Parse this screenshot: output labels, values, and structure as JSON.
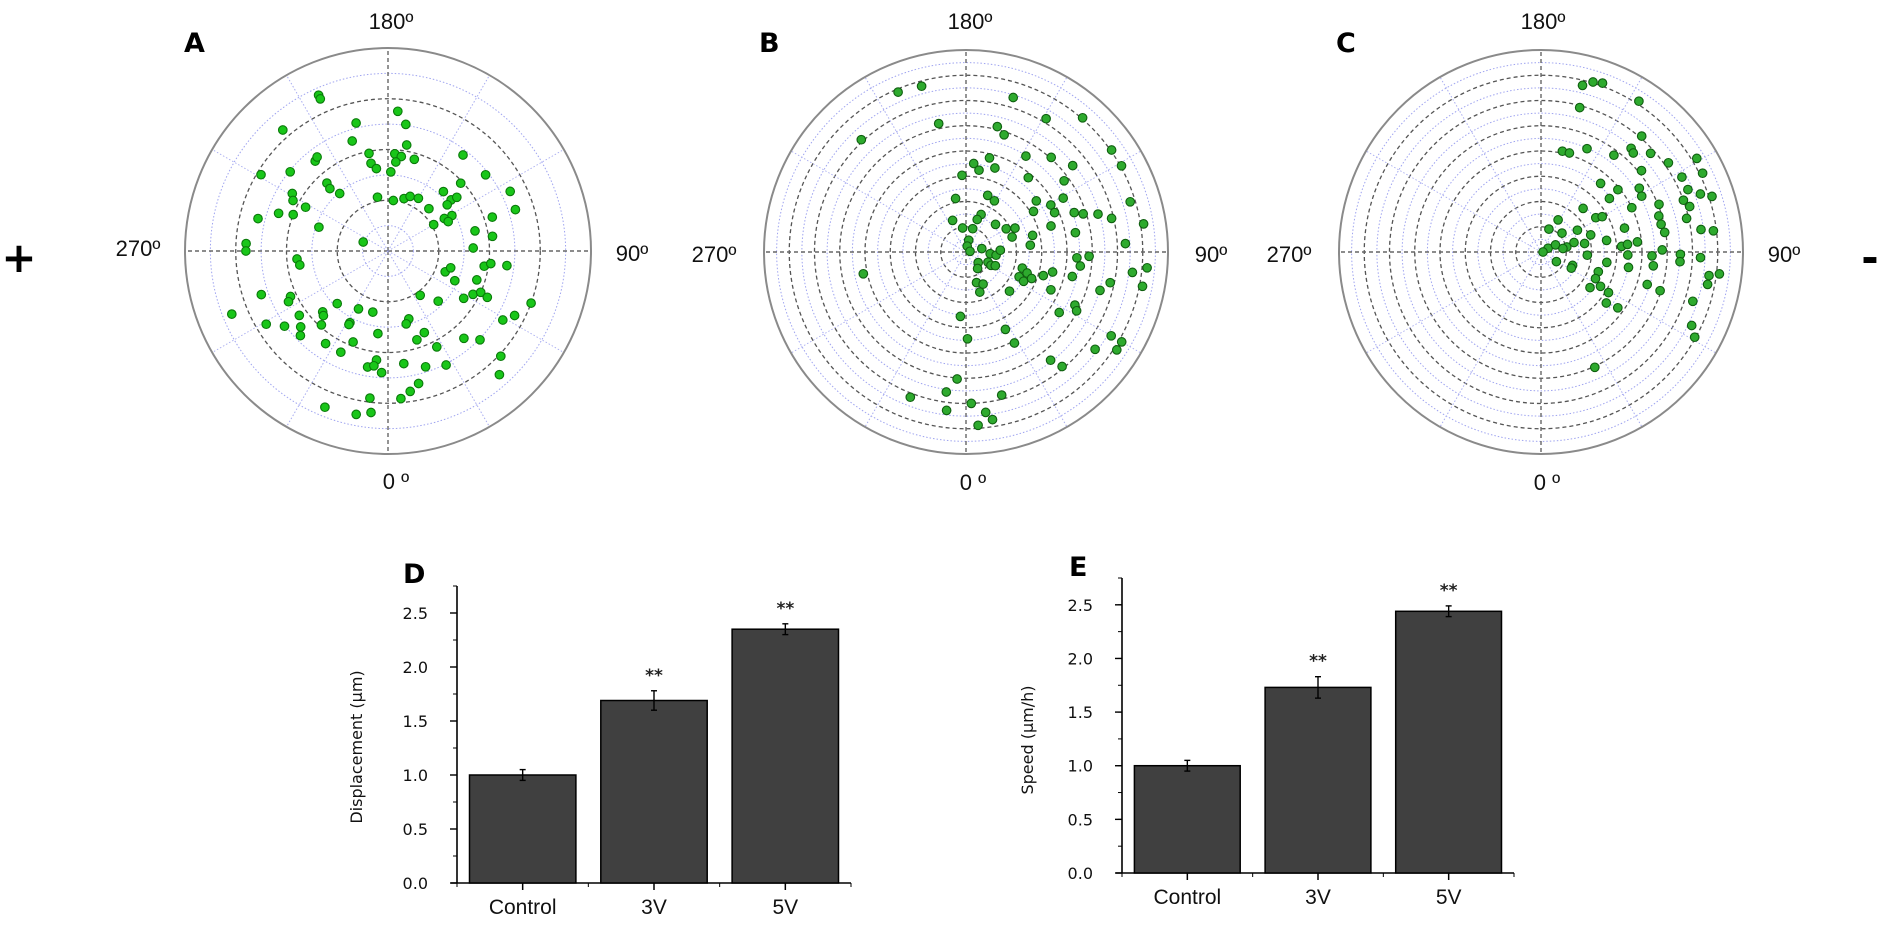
{
  "figure": {
    "sides": {
      "left": "+",
      "right": "-"
    }
  },
  "chart_data": [
    {
      "panel": "A",
      "type": "scatter",
      "coordinate_system": "polar",
      "angle_labels": {
        "top": "180º",
        "right": "90º",
        "bottom": "0 º",
        "left": "270º"
      },
      "angle_convention": "0° at bottom, 90° at right, 180° at top, 270° at left",
      "radial_range": [
        0,
        1
      ],
      "r_gridlines": 8,
      "angular_gridlines_deg": 30,
      "marker_color": "#19c619",
      "marker_edge": "#0a7a0a",
      "points_angle_radius": [
        [
          204,
          0.84
        ],
        [
          204,
          0.82
        ],
        [
          176,
          0.69
        ],
        [
          172,
          0.63
        ],
        [
          194,
          0.65
        ],
        [
          221,
          0.79
        ],
        [
          198,
          0.57
        ],
        [
          170,
          0.53
        ],
        [
          191,
          0.49
        ],
        [
          176,
          0.48
        ],
        [
          172,
          0.47
        ],
        [
          164,
          0.47
        ],
        [
          175,
          0.44
        ],
        [
          191,
          0.44
        ],
        [
          188,
          0.41
        ],
        [
          178,
          0.39
        ],
        [
          219,
          0.57
        ],
        [
          217,
          0.58
        ],
        [
          231,
          0.62
        ],
        [
          239,
          0.73
        ],
        [
          142,
          0.6
        ],
        [
          128,
          0.61
        ],
        [
          133,
          0.49
        ],
        [
          116,
          0.67
        ],
        [
          108,
          0.66
        ],
        [
          222,
          0.45
        ],
        [
          223,
          0.42
        ],
        [
          220,
          0.37
        ],
        [
          239,
          0.55
        ],
        [
          242,
          0.53
        ],
        [
          242,
          0.46
        ],
        [
          251,
          0.57
        ],
        [
          249,
          0.5
        ],
        [
          256,
          0.66
        ],
        [
          251,
          0.36
        ],
        [
          191,
          0.27
        ],
        [
          174,
          0.25
        ],
        [
          163,
          0.27
        ],
        [
          158,
          0.29
        ],
        [
          150,
          0.3
        ],
        [
          136,
          0.29
        ],
        [
          137,
          0.4
        ],
        [
          129,
          0.4
        ],
        [
          128,
          0.43
        ],
        [
          128,
          0.37
        ],
        [
          119,
          0.36
        ],
        [
          120,
          0.32
        ],
        [
          116,
          0.33
        ],
        [
          120,
          0.26
        ],
        [
          108,
          0.54
        ],
        [
          103,
          0.44
        ],
        [
          98,
          0.52
        ],
        [
          92,
          0.42
        ],
        [
          250,
          0.13
        ],
        [
          267,
          0.7
        ],
        [
          270,
          0.7
        ],
        [
          275,
          0.45
        ],
        [
          279,
          0.44
        ],
        [
          81,
          0.48
        ],
        [
          83,
          0.51
        ],
        [
          83,
          0.59
        ],
        [
          70,
          0.3
        ],
        [
          75,
          0.32
        ],
        [
          66,
          0.36
        ],
        [
          72,
          0.46
        ],
        [
          289,
          0.66
        ],
        [
          295,
          0.53
        ],
        [
          297,
          0.55
        ],
        [
          36,
          0.27
        ],
        [
          45,
          0.35
        ],
        [
          58,
          0.44
        ],
        [
          63,
          0.47
        ],
        [
          66,
          0.5
        ],
        [
          65,
          0.54
        ],
        [
          70,
          0.75
        ],
        [
          292,
          0.83
        ],
        [
          316,
          0.36
        ],
        [
          333,
          0.32
        ],
        [
          346,
          0.31
        ],
        [
          313,
          0.44
        ],
        [
          315,
          0.45
        ],
        [
          306,
          0.54
        ],
        [
          63,
          0.7
        ],
        [
          59,
          0.66
        ],
        [
          301,
          0.7
        ],
        [
          306,
          0.63
        ],
        [
          311,
          0.57
        ],
        [
          318,
          0.49
        ],
        [
          332,
          0.4
        ],
        [
          332,
          0.41
        ],
        [
          17,
          0.35
        ],
        [
          14,
          0.37
        ],
        [
          24,
          0.44
        ],
        [
          18,
          0.46
        ],
        [
          353,
          0.41
        ],
        [
          314,
          0.6
        ],
        [
          326,
          0.55
        ],
        [
          339,
          0.48
        ],
        [
          27,
          0.53
        ],
        [
          41,
          0.57
        ],
        [
          46,
          0.63
        ],
        [
          335,
          0.55
        ],
        [
          47,
          0.76
        ],
        [
          354,
          0.54
        ],
        [
          350,
          0.58
        ],
        [
          353,
          0.57
        ],
        [
          357,
          0.6
        ],
        [
          8,
          0.56
        ],
        [
          18,
          0.6
        ],
        [
          27,
          0.63
        ],
        [
          42,
          0.82
        ],
        [
          13,
          0.67
        ],
        [
          9,
          0.7
        ],
        [
          5,
          0.73
        ],
        [
          353,
          0.73
        ],
        [
          338,
          0.83
        ],
        [
          349,
          0.82
        ],
        [
          354,
          0.8
        ]
      ]
    },
    {
      "panel": "B",
      "type": "scatter",
      "coordinate_system": "polar",
      "angle_labels": {
        "top": "180º",
        "right": "90º",
        "bottom": "0 º",
        "left": "270º"
      },
      "angle_convention": "0° at bottom, 90° at right, 180° at top, 270° at left",
      "radial_range": [
        0,
        1
      ],
      "r_gridlines": 16,
      "angular_gridlines_deg": 30,
      "marker_color": "#2eaa2e",
      "marker_edge": "#0f5f0f",
      "points_angle_radius": [
        [
          203,
          0.86
        ],
        [
          195,
          0.85
        ],
        [
          163,
          0.8
        ],
        [
          149,
          0.77
        ],
        [
          139,
          0.88
        ],
        [
          192,
          0.65
        ],
        [
          166,
          0.64
        ],
        [
          162,
          0.61
        ],
        [
          223,
          0.76
        ],
        [
          148,
          0.56
        ],
        [
          138,
          0.63
        ],
        [
          125,
          0.88
        ],
        [
          166,
          0.48
        ],
        [
          175,
          0.44
        ],
        [
          171,
          0.41
        ],
        [
          161,
          0.44
        ],
        [
          183,
          0.38
        ],
        [
          140,
          0.48
        ],
        [
          129,
          0.68
        ],
        [
          126,
          0.6
        ],
        [
          191,
          0.27
        ],
        [
          159,
          0.3
        ],
        [
          151,
          0.29
        ],
        [
          126,
          0.43
        ],
        [
          119,
          0.55
        ],
        [
          121,
          0.39
        ],
        [
          119,
          0.48
        ],
        [
          114,
          0.48
        ],
        [
          110,
          0.57
        ],
        [
          108,
          0.61
        ],
        [
          106,
          0.68
        ],
        [
          103,
          0.74
        ],
        [
          158,
          0.2
        ],
        [
          161,
          0.17
        ],
        [
          203,
          0.17
        ],
        [
          133,
          0.2
        ],
        [
          120,
          0.23
        ],
        [
          116,
          0.27
        ],
        [
          108,
          0.24
        ],
        [
          104,
          0.34
        ],
        [
          107,
          0.44
        ],
        [
          100,
          0.55
        ],
        [
          188,
          0.12
        ],
        [
          164,
          0.12
        ],
        [
          167,
          0.06
        ],
        [
          169,
          0.03
        ],
        [
          100,
          0.02
        ],
        [
          102,
          0.08
        ],
        [
          86,
          0.12
        ],
        [
          84,
          0.15
        ],
        [
          93,
          0.17
        ],
        [
          49,
          0.08
        ],
        [
          65,
          0.12
        ],
        [
          62,
          0.14
        ],
        [
          65,
          0.16
        ],
        [
          35,
          0.1
        ],
        [
          96,
          0.32
        ],
        [
          87,
          0.55
        ],
        [
          88,
          0.61
        ],
        [
          83,
          0.57
        ],
        [
          74,
          0.29
        ],
        [
          71,
          0.32
        ],
        [
          65,
          0.29
        ],
        [
          63,
          0.32
        ],
        [
          68,
          0.35
        ],
        [
          73,
          0.4
        ],
        [
          77,
          0.44
        ],
        [
          77,
          0.54
        ],
        [
          19,
          0.16
        ],
        [
          28,
          0.18
        ],
        [
          19,
          0.21
        ],
        [
          48,
          0.29
        ],
        [
          66,
          0.46
        ],
        [
          74,
          0.69
        ],
        [
          78,
          0.73
        ],
        [
          282,
          0.52
        ],
        [
          64,
          0.6
        ],
        [
          62,
          0.62
        ],
        [
          57,
          0.55
        ],
        [
          355,
          0.32
        ],
        [
          27,
          0.43
        ],
        [
          1,
          0.43
        ],
        [
          28,
          0.51
        ],
        [
          60,
          0.83
        ],
        [
          53,
          0.8
        ],
        [
          57,
          0.89
        ],
        [
          38,
          0.68
        ],
        [
          40,
          0.74
        ],
        [
          356,
          0.63
        ],
        [
          339,
          0.77
        ],
        [
          352,
          0.7
        ],
        [
          14,
          0.73
        ],
        [
          2,
          0.75
        ],
        [
          353,
          0.79
        ],
        [
          7,
          0.8
        ],
        [
          9,
          0.84
        ],
        [
          4,
          0.86
        ],
        [
          119,
          0.88
        ],
        [
          107,
          0.85
        ],
        [
          99,
          0.89
        ],
        [
          93,
          0.79
        ],
        [
          85,
          0.9
        ],
        [
          83,
          0.83
        ],
        [
          79,
          0.89
        ],
        [
          60,
          0.89
        ]
      ]
    },
    {
      "panel": "C",
      "type": "scatter",
      "coordinate_system": "polar",
      "angle_labels": {
        "top": "180º",
        "right": "90º",
        "bottom": "0 º",
        "left": "270º"
      },
      "angle_convention": "0° at bottom, 90° at right, 180° at top, 270° at left",
      "radial_range": [
        0,
        1
      ],
      "r_gridlines": 16,
      "angular_gridlines_deg": 30,
      "marker_color": "#2eaa2e",
      "marker_edge": "#0f5f0f",
      "points_angle_radius": [
        [
          166,
          0.85
        ],
        [
          163,
          0.88
        ],
        [
          160,
          0.89
        ],
        [
          165,
          0.74
        ],
        [
          147,
          0.89
        ],
        [
          168,
          0.51
        ],
        [
          164,
          0.51
        ],
        [
          156,
          0.56
        ],
        [
          139,
          0.76
        ],
        [
          143,
          0.6
        ],
        [
          139,
          0.68
        ],
        [
          137,
          0.67
        ],
        [
          132,
          0.73
        ],
        [
          125,
          0.77
        ],
        [
          121,
          0.9
        ],
        [
          116,
          0.89
        ],
        [
          129,
          0.64
        ],
        [
          118,
          0.79
        ],
        [
          139,
          0.45
        ],
        [
          129,
          0.49
        ],
        [
          123,
          0.58
        ],
        [
          113,
          0.79
        ],
        [
          110,
          0.84
        ],
        [
          108,
          0.89
        ],
        [
          128,
          0.43
        ],
        [
          119,
          0.57
        ],
        [
          112,
          0.63
        ],
        [
          110,
          0.75
        ],
        [
          107,
          0.77
        ],
        [
          136,
          0.3
        ],
        [
          116,
          0.5
        ],
        [
          107,
          0.61
        ],
        [
          103,
          0.74
        ],
        [
          122,
          0.32
        ],
        [
          120,
          0.35
        ],
        [
          152,
          0.18
        ],
        [
          161,
          0.12
        ],
        [
          121,
          0.21
        ],
        [
          132,
          0.14
        ],
        [
          109,
          0.26
        ],
        [
          106,
          0.43
        ],
        [
          103,
          0.61
        ],
        [
          99,
          0.62
        ],
        [
          98,
          0.8
        ],
        [
          97,
          0.86
        ],
        [
          118,
          0.04
        ],
        [
          90,
          0.01
        ],
        [
          116,
          0.08
        ],
        [
          101,
          0.13
        ],
        [
          106,
          0.17
        ],
        [
          101,
          0.22
        ],
        [
          100,
          0.33
        ],
        [
          94,
          0.4
        ],
        [
          95,
          0.43
        ],
        [
          96,
          0.48
        ],
        [
          88,
          0.55
        ],
        [
          91,
          0.6
        ],
        [
          89,
          0.69
        ],
        [
          88,
          0.79
        ],
        [
          58,
          0.09
        ],
        [
          67,
          0.17
        ],
        [
          86,
          0.23
        ],
        [
          81,
          0.33
        ],
        [
          71,
          0.3
        ],
        [
          64,
          0.3
        ],
        [
          80,
          0.44
        ],
        [
          88,
          0.43
        ],
        [
          83,
          0.56
        ],
        [
          86,
          0.69
        ],
        [
          82,
          0.84
        ],
        [
          83,
          0.89
        ],
        [
          79,
          0.84
        ],
        [
          73,
          0.55
        ],
        [
          54,
          0.3
        ],
        [
          60,
          0.34
        ],
        [
          59,
          0.39
        ],
        [
          72,
          0.62
        ],
        [
          52,
          0.41
        ],
        [
          54,
          0.47
        ],
        [
          72,
          0.79
        ],
        [
          64,
          0.83
        ],
        [
          61,
          0.87
        ],
        [
          25,
          0.63
        ],
        [
          62,
          0.17
        ],
        [
          99,
          0.11
        ]
      ]
    },
    {
      "panel": "D",
      "type": "bar",
      "title": "",
      "categories": [
        "Control",
        "3V",
        "5V"
      ],
      "values": [
        1.0,
        1.69,
        2.35
      ],
      "error": [
        0.05,
        0.09,
        0.05
      ],
      "significance": [
        "",
        "**",
        "**"
      ],
      "xlabel": "",
      "ylabel": "Displacement (µm)",
      "ylim": [
        0,
        2.75
      ],
      "yticks": [
        0.0,
        0.5,
        1.0,
        1.5,
        2.0,
        2.5
      ],
      "ytick_labels": [
        "0.0",
        "0.5",
        "1.0",
        "1.5",
        "2.0",
        "2.5"
      ],
      "minor_tick_step": 0.25,
      "bar_color": "#404040",
      "grid": false
    },
    {
      "panel": "E",
      "type": "bar",
      "title": "",
      "categories": [
        "Control",
        "3V",
        "5V"
      ],
      "values": [
        1.0,
        1.73,
        2.44
      ],
      "error": [
        0.05,
        0.1,
        0.05
      ],
      "significance": [
        "",
        "**",
        "**"
      ],
      "xlabel": "",
      "ylabel": "Speed (µm/h)",
      "ylim": [
        0,
        2.75
      ],
      "yticks": [
        0.0,
        0.5,
        1.0,
        1.5,
        2.0,
        2.5
      ],
      "ytick_labels": [
        "0.0",
        "0.5",
        "1.0",
        "1.5",
        "2.0",
        "2.5"
      ],
      "minor_tick_step": 0.25,
      "bar_color": "#404040",
      "grid": false
    }
  ]
}
